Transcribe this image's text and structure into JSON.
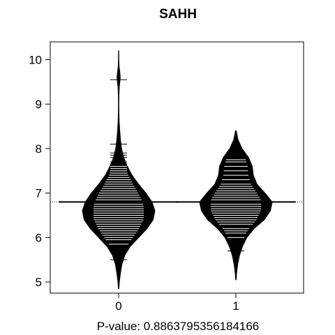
{
  "chart_data": {
    "type": "beanplot",
    "title": "SAHH",
    "xlabel": "P-value: 0.8863795356184166",
    "ylabel": "",
    "categories": [
      "0",
      "1"
    ],
    "y_ticks": [
      5,
      6,
      7,
      8,
      9,
      10
    ],
    "ylim": [
      4.75,
      10.4
    ],
    "overall_mean_line": 6.8,
    "grid": false,
    "legend": "none",
    "colors": {
      "bean": "#000000",
      "lines": "#ffffff",
      "background": "#ffffff"
    },
    "beans": [
      {
        "category": "0",
        "mean": 6.8,
        "min": 4.85,
        "max": 10.2,
        "density": [
          [
            4.85,
            0.005
          ],
          [
            5.0,
            0.02
          ],
          [
            5.2,
            0.05
          ],
          [
            5.4,
            0.09
          ],
          [
            5.6,
            0.17
          ],
          [
            5.8,
            0.32
          ],
          [
            6.0,
            0.55
          ],
          [
            6.2,
            0.78
          ],
          [
            6.4,
            0.95
          ],
          [
            6.6,
            1.0
          ],
          [
            6.8,
            0.92
          ],
          [
            7.0,
            0.75
          ],
          [
            7.2,
            0.55
          ],
          [
            7.4,
            0.37
          ],
          [
            7.6,
            0.24
          ],
          [
            7.8,
            0.14
          ],
          [
            8.0,
            0.08
          ],
          [
            8.2,
            0.05
          ],
          [
            8.4,
            0.03
          ],
          [
            8.6,
            0.015
          ],
          [
            8.8,
            0.008
          ],
          [
            9.0,
            0.006
          ],
          [
            9.2,
            0.008
          ],
          [
            9.4,
            0.02
          ],
          [
            9.5,
            0.035
          ],
          [
            9.6,
            0.045
          ],
          [
            9.7,
            0.035
          ],
          [
            9.85,
            0.012
          ],
          [
            10.0,
            0.006
          ],
          [
            10.2,
            0.003
          ]
        ],
        "observations": [
          5.5,
          5.85,
          5.95,
          6.0,
          6.05,
          6.1,
          6.15,
          6.2,
          6.25,
          6.3,
          6.35,
          6.4,
          6.45,
          6.5,
          6.55,
          6.6,
          6.65,
          6.7,
          6.75,
          6.8,
          6.85,
          6.9,
          6.95,
          7.0,
          7.05,
          7.1,
          7.15,
          7.2,
          7.25,
          7.3,
          7.35,
          7.4,
          7.45,
          7.5,
          7.55,
          7.6,
          7.65,
          7.7,
          7.8,
          7.85,
          7.9,
          8.1,
          9.55
        ]
      },
      {
        "category": "1",
        "mean": 6.8,
        "min": 5.05,
        "max": 8.4,
        "density": [
          [
            5.05,
            0.005
          ],
          [
            5.2,
            0.02
          ],
          [
            5.4,
            0.05
          ],
          [
            5.6,
            0.1
          ],
          [
            5.8,
            0.18
          ],
          [
            6.0,
            0.3
          ],
          [
            6.2,
            0.5
          ],
          [
            6.4,
            0.78
          ],
          [
            6.6,
            0.95
          ],
          [
            6.8,
            1.0
          ],
          [
            7.0,
            0.8
          ],
          [
            7.2,
            0.58
          ],
          [
            7.4,
            0.48
          ],
          [
            7.6,
            0.45
          ],
          [
            7.8,
            0.35
          ],
          [
            8.0,
            0.17
          ],
          [
            8.2,
            0.06
          ],
          [
            8.4,
            0.01
          ]
        ],
        "observations": [
          5.7,
          6.0,
          6.1,
          6.15,
          6.2,
          6.3,
          6.35,
          6.4,
          6.45,
          6.5,
          6.55,
          6.6,
          6.65,
          6.7,
          6.75,
          6.8,
          6.85,
          6.9,
          6.95,
          7.0,
          7.05,
          7.1,
          7.15,
          7.2,
          7.3,
          7.4,
          7.5,
          7.6,
          7.7,
          7.75
        ]
      }
    ]
  }
}
